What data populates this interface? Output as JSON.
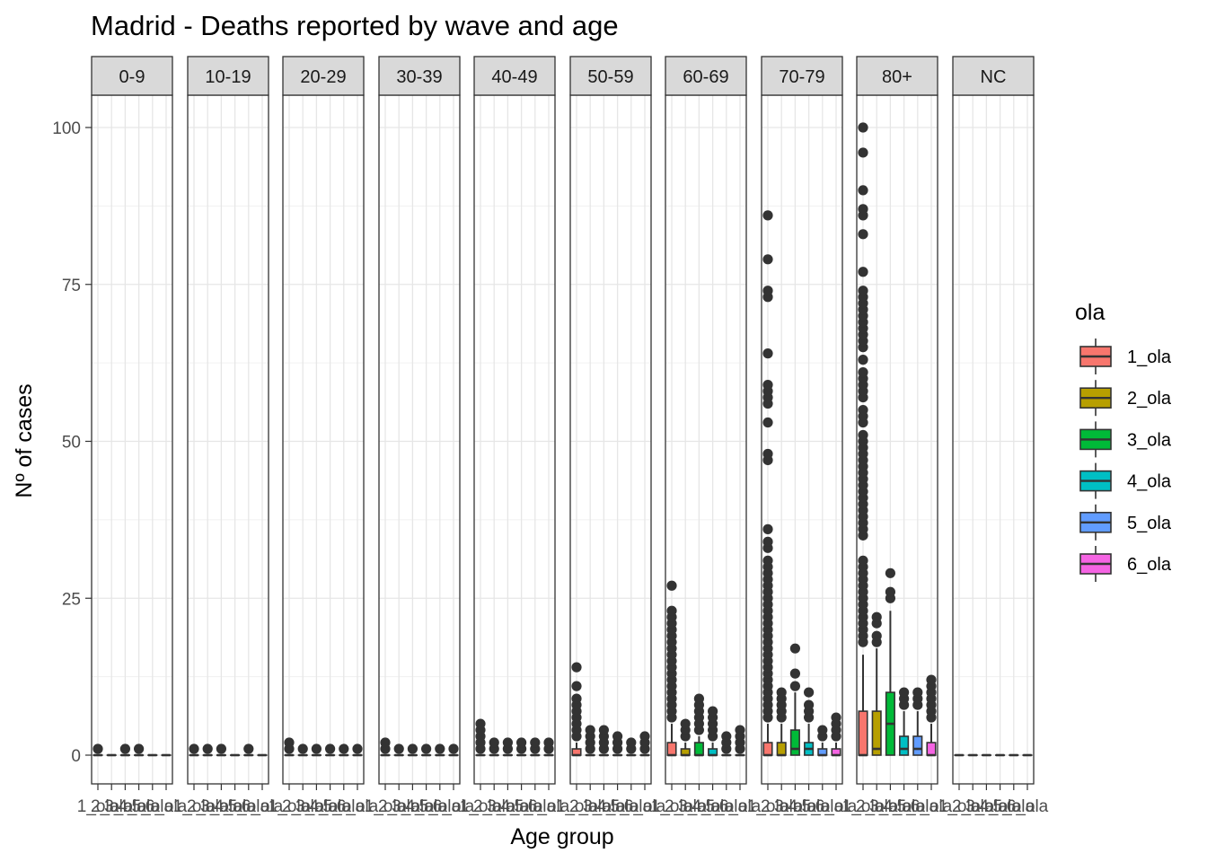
{
  "chart_data": {
    "type": "boxplot",
    "title": "Madrid - Deaths reported by wave and age",
    "xlabel": "Age group",
    "ylabel": "Nº of cases",
    "ylim": [
      -4.5,
      110.5
    ],
    "yticks": [
      0,
      25,
      50,
      75,
      100
    ],
    "grid": true,
    "legend_title": "ola",
    "legend_position": "right",
    "facets": [
      "0-9",
      "10-19",
      "20-29",
      "30-39",
      "40-49",
      "50-59",
      "60-69",
      "70-79",
      "80+",
      "NC"
    ],
    "categories": [
      "1_ola",
      "2_ola",
      "3_ola",
      "4_ola",
      "5_ola",
      "6_ola"
    ],
    "series_colors": [
      "#F8766D",
      "#B79F00",
      "#00BA38",
      "#00BFC4",
      "#619CFF",
      "#F564E3"
    ],
    "boxes": {
      "0-9": [
        {
          "q1": 0,
          "median": 0,
          "q3": 0,
          "whisker_low": 0,
          "whisker_high": 0,
          "outliers": [
            1
          ]
        },
        {
          "q1": 0,
          "median": 0,
          "q3": 0,
          "whisker_low": 0,
          "whisker_high": 0,
          "outliers": []
        },
        {
          "q1": 0,
          "median": 0,
          "q3": 0,
          "whisker_low": 0,
          "whisker_high": 0,
          "outliers": [
            1
          ]
        },
        {
          "q1": 0,
          "median": 0,
          "q3": 0,
          "whisker_low": 0,
          "whisker_high": 0,
          "outliers": [
            1
          ]
        },
        {
          "q1": 0,
          "median": 0,
          "q3": 0,
          "whisker_low": 0,
          "whisker_high": 0,
          "outliers": []
        },
        {
          "q1": 0,
          "median": 0,
          "q3": 0,
          "whisker_low": 0,
          "whisker_high": 0,
          "outliers": []
        }
      ],
      "10-19": [
        {
          "q1": 0,
          "median": 0,
          "q3": 0,
          "whisker_low": 0,
          "whisker_high": 0,
          "outliers": [
            1
          ]
        },
        {
          "q1": 0,
          "median": 0,
          "q3": 0,
          "whisker_low": 0,
          "whisker_high": 0,
          "outliers": [
            1
          ]
        },
        {
          "q1": 0,
          "median": 0,
          "q3": 0,
          "whisker_low": 0,
          "whisker_high": 0,
          "outliers": [
            1
          ]
        },
        {
          "q1": 0,
          "median": 0,
          "q3": 0,
          "whisker_low": 0,
          "whisker_high": 0,
          "outliers": []
        },
        {
          "q1": 0,
          "median": 0,
          "q3": 0,
          "whisker_low": 0,
          "whisker_high": 0,
          "outliers": [
            1
          ]
        },
        {
          "q1": 0,
          "median": 0,
          "q3": 0,
          "whisker_low": 0,
          "whisker_high": 0,
          "outliers": []
        }
      ],
      "20-29": [
        {
          "q1": 0,
          "median": 0,
          "q3": 0,
          "whisker_low": 0,
          "whisker_high": 0,
          "outliers": [
            1,
            2
          ]
        },
        {
          "q1": 0,
          "median": 0,
          "q3": 0,
          "whisker_low": 0,
          "whisker_high": 0,
          "outliers": [
            1
          ]
        },
        {
          "q1": 0,
          "median": 0,
          "q3": 0,
          "whisker_low": 0,
          "whisker_high": 0,
          "outliers": [
            1
          ]
        },
        {
          "q1": 0,
          "median": 0,
          "q3": 0,
          "whisker_low": 0,
          "whisker_high": 0,
          "outliers": [
            1
          ]
        },
        {
          "q1": 0,
          "median": 0,
          "q3": 0,
          "whisker_low": 0,
          "whisker_high": 0,
          "outliers": [
            1
          ]
        },
        {
          "q1": 0,
          "median": 0,
          "q3": 0,
          "whisker_low": 0,
          "whisker_high": 0,
          "outliers": [
            1
          ]
        }
      ],
      "30-39": [
        {
          "q1": 0,
          "median": 0,
          "q3": 0,
          "whisker_low": 0,
          "whisker_high": 0,
          "outliers": [
            1,
            2
          ]
        },
        {
          "q1": 0,
          "median": 0,
          "q3": 0,
          "whisker_low": 0,
          "whisker_high": 0,
          "outliers": [
            1
          ]
        },
        {
          "q1": 0,
          "median": 0,
          "q3": 0,
          "whisker_low": 0,
          "whisker_high": 0,
          "outliers": [
            1
          ]
        },
        {
          "q1": 0,
          "median": 0,
          "q3": 0,
          "whisker_low": 0,
          "whisker_high": 0,
          "outliers": [
            1
          ]
        },
        {
          "q1": 0,
          "median": 0,
          "q3": 0,
          "whisker_low": 0,
          "whisker_high": 0,
          "outliers": [
            1
          ]
        },
        {
          "q1": 0,
          "median": 0,
          "q3": 0,
          "whisker_low": 0,
          "whisker_high": 0,
          "outliers": [
            1
          ]
        }
      ],
      "40-49": [
        {
          "q1": 0,
          "median": 0,
          "q3": 0,
          "whisker_low": 0,
          "whisker_high": 0,
          "outliers": [
            1,
            2,
            3,
            4,
            5
          ]
        },
        {
          "q1": 0,
          "median": 0,
          "q3": 0,
          "whisker_low": 0,
          "whisker_high": 0,
          "outliers": [
            1,
            2
          ]
        },
        {
          "q1": 0,
          "median": 0,
          "q3": 0,
          "whisker_low": 0,
          "whisker_high": 0,
          "outliers": [
            1,
            2
          ]
        },
        {
          "q1": 0,
          "median": 0,
          "q3": 0,
          "whisker_low": 0,
          "whisker_high": 0,
          "outliers": [
            1,
            2
          ]
        },
        {
          "q1": 0,
          "median": 0,
          "q3": 0,
          "whisker_low": 0,
          "whisker_high": 0,
          "outliers": [
            1,
            2
          ]
        },
        {
          "q1": 0,
          "median": 0,
          "q3": 0,
          "whisker_low": 0,
          "whisker_high": 0,
          "outliers": [
            1,
            2
          ]
        }
      ],
      "50-59": [
        {
          "q1": 0,
          "median": 0,
          "q3": 1,
          "whisker_low": 0,
          "whisker_high": 2,
          "outliers": [
            3,
            4,
            5,
            6,
            7,
            8,
            9,
            11,
            14
          ]
        },
        {
          "q1": 0,
          "median": 0,
          "q3": 0,
          "whisker_low": 0,
          "whisker_high": 0,
          "outliers": [
            1,
            2,
            3,
            4
          ]
        },
        {
          "q1": 0,
          "median": 0,
          "q3": 0,
          "whisker_low": 0,
          "whisker_high": 0,
          "outliers": [
            1,
            2,
            3,
            4
          ]
        },
        {
          "q1": 0,
          "median": 0,
          "q3": 0,
          "whisker_low": 0,
          "whisker_high": 0,
          "outliers": [
            1,
            2,
            3
          ]
        },
        {
          "q1": 0,
          "median": 0,
          "q3": 0,
          "whisker_low": 0,
          "whisker_high": 0,
          "outliers": [
            1,
            2
          ]
        },
        {
          "q1": 0,
          "median": 0,
          "q3": 0,
          "whisker_low": 0,
          "whisker_high": 0,
          "outliers": [
            1,
            2,
            3
          ]
        }
      ],
      "60-69": [
        {
          "q1": 0,
          "median": 0,
          "q3": 2,
          "whisker_low": 0,
          "whisker_high": 5,
          "outliers": [
            6,
            7,
            8,
            9,
            10,
            11,
            12,
            13,
            14,
            15,
            16,
            17,
            18,
            19,
            20,
            21,
            22,
            23,
            27
          ]
        },
        {
          "q1": 0,
          "median": 0,
          "q3": 1,
          "whisker_low": 0,
          "whisker_high": 2,
          "outliers": [
            3,
            4,
            5
          ]
        },
        {
          "q1": 0,
          "median": 0,
          "q3": 2,
          "whisker_low": 0,
          "whisker_high": 3,
          "outliers": [
            4,
            5,
            6,
            7,
            8,
            9
          ]
        },
        {
          "q1": 0,
          "median": 0,
          "q3": 1,
          "whisker_low": 0,
          "whisker_high": 2,
          "outliers": [
            3,
            4,
            5,
            6,
            7
          ]
        },
        {
          "q1": 0,
          "median": 0,
          "q3": 0,
          "whisker_low": 0,
          "whisker_high": 0,
          "outliers": [
            1,
            2,
            3
          ]
        },
        {
          "q1": 0,
          "median": 0,
          "q3": 0,
          "whisker_low": 0,
          "whisker_high": 0,
          "outliers": [
            1,
            2,
            3,
            4
          ]
        }
      ],
      "70-79": [
        {
          "q1": 0,
          "median": 0,
          "q3": 2,
          "whisker_low": 0,
          "whisker_high": 5,
          "outliers": [
            6,
            7,
            8,
            9,
            10,
            11,
            12,
            13,
            14,
            15,
            16,
            17,
            18,
            19,
            20,
            21,
            22,
            23,
            24,
            25,
            26,
            27,
            28,
            29,
            30,
            31,
            33,
            34,
            36,
            47,
            48,
            53,
            56,
            57,
            58,
            59,
            64,
            73,
            74,
            79,
            86
          ]
        },
        {
          "q1": 0,
          "median": 0,
          "q3": 2,
          "whisker_low": 0,
          "whisker_high": 5,
          "outliers": [
            6,
            7,
            8,
            9,
            10
          ]
        },
        {
          "q1": 0,
          "median": 1,
          "q3": 4,
          "whisker_low": 0,
          "whisker_high": 10,
          "outliers": [
            11,
            13,
            17
          ]
        },
        {
          "q1": 0,
          "median": 1,
          "q3": 2,
          "whisker_low": 0,
          "whisker_high": 5,
          "outliers": [
            6,
            7,
            8,
            10
          ]
        },
        {
          "q1": 0,
          "median": 0,
          "q3": 1,
          "whisker_low": 0,
          "whisker_high": 2,
          "outliers": [
            3,
            4
          ]
        },
        {
          "q1": 0,
          "median": 0,
          "q3": 1,
          "whisker_low": 0,
          "whisker_high": 2,
          "outliers": [
            3,
            4,
            5,
            6
          ]
        }
      ],
      "80+": [
        {
          "q1": 0,
          "median": 0,
          "q3": 7,
          "whisker_low": 0,
          "whisker_high": 16,
          "outliers": [
            18,
            19,
            20,
            21,
            22,
            23,
            24,
            25,
            26,
            27,
            28,
            29,
            30,
            31,
            35,
            36,
            37,
            38,
            39,
            40,
            41,
            42,
            43,
            44,
            45,
            46,
            47,
            48,
            49,
            50,
            51,
            53,
            54,
            55,
            57,
            58,
            59,
            60,
            61,
            63,
            65,
            66,
            67,
            68,
            69,
            70,
            71,
            72,
            73,
            74,
            77,
            83,
            86,
            87,
            90,
            96,
            100
          ]
        },
        {
          "q1": 0,
          "median": 1,
          "q3": 7,
          "whisker_low": 0,
          "whisker_high": 17,
          "outliers": [
            18,
            19,
            21,
            22
          ]
        },
        {
          "q1": 0,
          "median": 5,
          "q3": 10,
          "whisker_low": 0,
          "whisker_high": 23,
          "outliers": [
            25,
            26,
            29
          ]
        },
        {
          "q1": 0,
          "median": 1,
          "q3": 3,
          "whisker_low": 0,
          "whisker_high": 7,
          "outliers": [
            8,
            9,
            10
          ]
        },
        {
          "q1": 0,
          "median": 1,
          "q3": 3,
          "whisker_low": 0,
          "whisker_high": 7,
          "outliers": [
            8,
            9,
            10
          ]
        },
        {
          "q1": 0,
          "median": 0,
          "q3": 2,
          "whisker_low": 0,
          "whisker_high": 5,
          "outliers": [
            6,
            7,
            8,
            9,
            10,
            11,
            12
          ]
        }
      ],
      "NC": [
        {
          "q1": 0,
          "median": 0,
          "q3": 0,
          "whisker_low": 0,
          "whisker_high": 0,
          "outliers": []
        },
        {
          "q1": 0,
          "median": 0,
          "q3": 0,
          "whisker_low": 0,
          "whisker_high": 0,
          "outliers": []
        },
        {
          "q1": 0,
          "median": 0,
          "q3": 0,
          "whisker_low": 0,
          "whisker_high": 0,
          "outliers": []
        },
        {
          "q1": 0,
          "median": 0,
          "q3": 0,
          "whisker_low": 0,
          "whisker_high": 0,
          "outliers": []
        },
        {
          "q1": 0,
          "median": 0,
          "q3": 0,
          "whisker_low": 0,
          "whisker_high": 0,
          "outliers": []
        },
        {
          "q1": 0,
          "median": 0,
          "q3": 0,
          "whisker_low": 0,
          "whisker_high": 0,
          "outliers": []
        }
      ]
    }
  }
}
